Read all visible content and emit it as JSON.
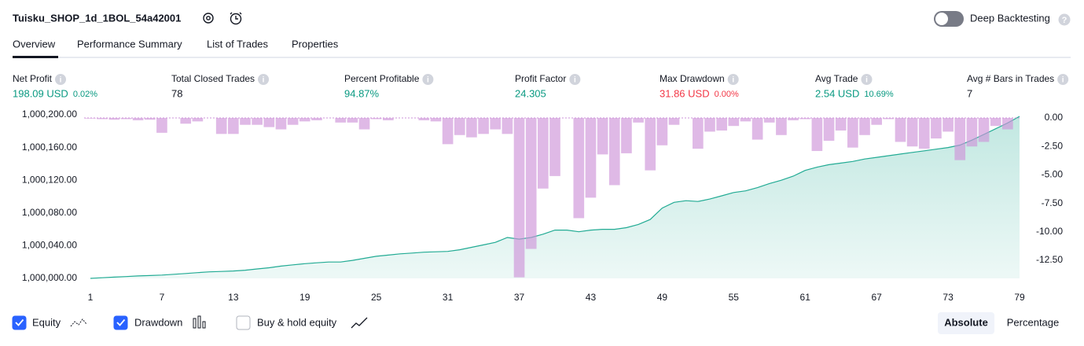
{
  "header": {
    "strategy_name": "Tuisku_SHOP_1d_1BOL_54a42001",
    "deep_backtesting": "Deep Backtesting"
  },
  "tabs": [
    "Overview",
    "Performance Summary",
    "List of Trades",
    "Properties"
  ],
  "metrics": [
    {
      "label": "Net Profit",
      "value": "198.09 USD",
      "change": "0.02%",
      "color": "#089981"
    },
    {
      "label": "Total Closed Trades",
      "value": "78",
      "color": "#131722"
    },
    {
      "label": "Percent Profitable",
      "value": "94.87%",
      "color": "#089981"
    },
    {
      "label": "Profit Factor",
      "value": "24.305",
      "color": "#089981"
    },
    {
      "label": "Max Drawdown",
      "value": "31.86 USD",
      "change": "0.00%",
      "color": "#f23645"
    },
    {
      "label": "Avg Trade",
      "value": "2.54 USD",
      "change": "10.69%",
      "color": "#089981"
    },
    {
      "label": "Avg # Bars in Trades",
      "value": "7",
      "color": "#131722"
    }
  ],
  "chart_data": {
    "type": "line",
    "x": [
      1,
      2,
      3,
      4,
      5,
      6,
      7,
      8,
      9,
      10,
      11,
      12,
      13,
      14,
      15,
      16,
      17,
      18,
      19,
      20,
      21,
      22,
      23,
      24,
      25,
      26,
      27,
      28,
      29,
      30,
      31,
      32,
      33,
      34,
      35,
      36,
      37,
      38,
      39,
      40,
      41,
      42,
      43,
      44,
      45,
      46,
      47,
      48,
      49,
      50,
      51,
      52,
      53,
      54,
      55,
      56,
      57,
      58,
      59,
      60,
      61,
      62,
      63,
      64,
      65,
      66,
      67,
      68,
      69,
      70,
      71,
      72,
      73,
      74,
      75,
      76,
      77,
      78,
      79
    ],
    "series": [
      {
        "name": "Equity",
        "type": "area",
        "color": "#22ab94",
        "checked": true,
        "values": [
          1000000,
          1000000.8,
          1000001.5,
          1000002.2,
          1000003,
          1000003.5,
          1000004,
          1000005,
          1000006,
          1000007,
          1000008,
          1000008.5,
          1000009,
          1000010,
          1000011.5,
          1000013,
          1000015,
          1000016.5,
          1000018,
          1000019,
          1000020,
          1000020,
          1000022,
          1000024.5,
          1000027,
          1000028.5,
          1000030,
          1000031,
          1000032,
          1000032.5,
          1000033,
          1000035,
          1000038,
          1000041,
          1000044,
          1000050,
          1000048,
          1000050,
          1000054,
          1000059,
          1000059,
          1000057,
          1000059,
          1000060,
          1000060,
          1000062,
          1000066,
          1000072,
          1000086,
          1000093,
          1000095,
          1000094,
          1000097,
          1000101,
          1000105,
          1000107,
          1000111,
          1000116,
          1000120,
          1000125,
          1000132,
          1000136,
          1000139,
          1000141,
          1000143,
          1000146,
          1000148,
          1000150,
          1000152,
          1000154,
          1000156,
          1000158,
          1000160,
          1000163,
          1000169,
          1000176,
          1000183,
          1000190,
          1000198.09
        ]
      },
      {
        "name": "Drawdown",
        "type": "bar",
        "axis": "y2",
        "color": "#ce93d8",
        "checked": true,
        "values": [
          -0.05,
          -0.1,
          -0.15,
          -0.1,
          -0.2,
          -0.15,
          -1.3,
          0,
          -0.5,
          -0.3,
          0,
          -1.4,
          -1.4,
          -0.6,
          -0.6,
          -0.8,
          -1.0,
          -0.6,
          -0.3,
          -0.2,
          0,
          -0.4,
          -0.4,
          -1.0,
          -0.1,
          -0.2,
          0,
          0,
          -0.2,
          -0.3,
          -2.3,
          -1.5,
          -1.7,
          -1.4,
          -1.0,
          -1.4,
          -14.0,
          -11.5,
          -6.2,
          -5.1,
          0,
          -8.8,
          -7.0,
          -3.2,
          -5.9,
          -3.1,
          -0.4,
          -4.6,
          -2.4,
          -0.6,
          0,
          -2.7,
          -1.2,
          -1.1,
          -0.7,
          -0.3,
          -1.9,
          -0.4,
          -1.5,
          -0.2,
          -0.1,
          -2.9,
          -2.0,
          -1.1,
          -2.6,
          -1.5,
          -0.6,
          -0.1,
          -2.1,
          -2.5,
          -2.7,
          -1.8,
          -1.2,
          -3.7,
          -2.5,
          -2.1,
          -0.7,
          -1.0,
          0
        ]
      }
    ],
    "xlim": [
      1,
      79
    ],
    "xticks": [
      1,
      7,
      13,
      19,
      25,
      31,
      37,
      43,
      49,
      55,
      61,
      67,
      73,
      79
    ],
    "ylim": [
      1000000,
      1000200
    ],
    "yticks": [
      {
        "value": 1000000,
        "label": "1,000,000.00"
      },
      {
        "value": 1000040,
        "label": "1,000,040.00"
      },
      {
        "value": 1000080,
        "label": "1,000,080.00"
      },
      {
        "value": 1000120,
        "label": "1,000,120.00"
      },
      {
        "value": 1000160,
        "label": "1,000,160.00"
      },
      {
        "value": 1000200,
        "label": "1,000,200.00"
      }
    ],
    "y2lim": [
      -14.09,
      0.28
    ],
    "y2ticks": [
      {
        "value": 0,
        "label": "0.00"
      },
      {
        "value": -2.5,
        "label": "-2.50"
      },
      {
        "value": -5,
        "label": "-5.00"
      },
      {
        "value": -7.5,
        "label": "-7.50"
      },
      {
        "value": -10,
        "label": "-10.00"
      },
      {
        "value": -12.5,
        "label": "-12.50"
      }
    ],
    "grid": false
  },
  "footer": {
    "buy_hold": {
      "label": "Buy & hold equity",
      "checked": false
    },
    "modes": [
      "Absolute",
      "Percentage"
    ],
    "active_mode": 0
  }
}
